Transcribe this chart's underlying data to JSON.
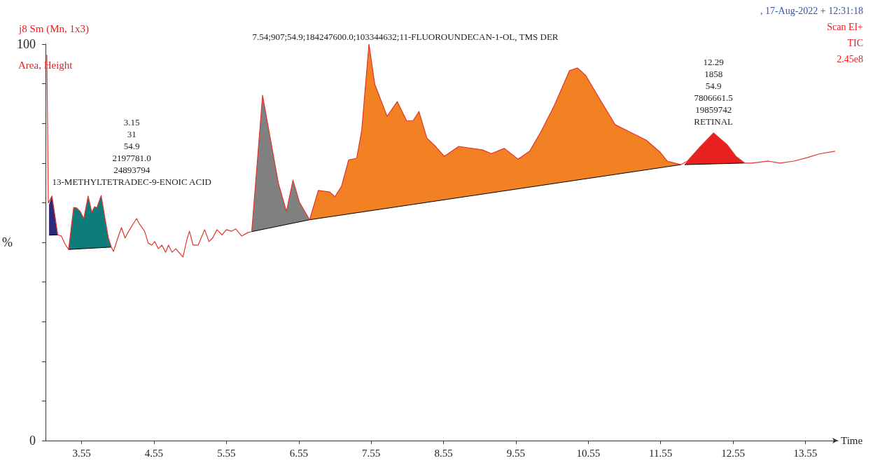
{
  "chart_data": {
    "type": "line",
    "title": "j8 Sm (Mn, 1x3)",
    "subtitle": "Area, Height",
    "xlabel": "Time",
    "ylabel": "%",
    "annotations": [
      ", 17-Aug-2022 + 12:31:18",
      "Scan EI+",
      "TIC",
      "2.45e8",
      {
        "text": "3.15\n31\n54.9\n2197781.0\n24893794\n13-METHYLTETRADEC-9-ENOIC ACID",
        "x": 3.14,
        "y": 61.7
      },
      {
        "text": "7.54;907;54.9;184247600.0;103344632;11-FLUOROUNDECAN-1-OL, TMS DER",
        "x": 7.52,
        "y": 100
      },
      {
        "text": "12.29\n1858\n54.9\n7806661.5\n19859742\nRETINAL",
        "x": 12.28,
        "y": 77.6
      }
    ],
    "xlim": [
      3.05,
      14.0
    ],
    "xticks": [
      3.55,
      4.55,
      5.55,
      6.55,
      7.55,
      8.55,
      9.55,
      10.55,
      11.55,
      12.55,
      13.55
    ],
    "ylim": [
      0,
      100
    ],
    "yticks": [
      0,
      {
        "value": 10,
        "label": null
      },
      {
        "value": 20,
        "label": null
      },
      {
        "value": 30,
        "label": null
      },
      {
        "value": 40,
        "label": null
      },
      {
        "value": 50,
        "label": null
      },
      {
        "value": 60,
        "label": null
      },
      {
        "value": 70,
        "label": null
      },
      {
        "value": 80,
        "label": null
      },
      {
        "value": 90,
        "label": null
      },
      100
    ],
    "series": [
      {
        "type": "area",
        "color": "#2b2a7a",
        "x": [
          3.1,
          3.1,
          3.14,
          3.17,
          3.22
        ],
        "values": [
          51.8,
          59.5,
          61.7,
          58.1,
          51.9
        ]
      },
      {
        "type": "area",
        "color": "#0e7c7b",
        "x": [
          3.37,
          3.44,
          3.48,
          3.53,
          3.58,
          3.64,
          3.69,
          3.73,
          3.76,
          3.82,
          3.87,
          3.92,
          3.96
        ],
        "values": [
          48.2,
          58.8,
          58.7,
          57.8,
          56.0,
          61.7,
          57.6,
          59.0,
          58.7,
          61.8,
          56.4,
          51.1,
          48.8
        ]
      },
      {
        "type": "area",
        "color": "#808080",
        "x": [
          5.9,
          6.05,
          6.17,
          6.27,
          6.38,
          6.47,
          6.56,
          6.7
        ],
        "values": [
          52.7,
          87.1,
          74.9,
          64.8,
          57.8,
          65.7,
          60.1,
          55.7
        ]
      },
      {
        "type": "area",
        "color": "#f28123",
        "x": [
          6.7,
          6.82,
          6.98,
          7.05,
          7.14,
          7.24,
          7.35,
          7.42,
          7.52,
          7.6,
          7.77,
          7.91,
          8.04,
          8.13,
          8.21,
          8.32,
          8.44,
          8.56,
          8.76,
          9.09,
          9.21,
          9.39,
          9.58,
          9.74,
          9.89,
          10.08,
          10.29,
          10.4,
          10.51,
          10.7,
          10.92,
          11.14,
          11.35,
          11.54,
          11.64,
          11.83
        ],
        "values": [
          55.7,
          63.1,
          62.7,
          61.5,
          64.1,
          70.8,
          71.2,
          78.3,
          100,
          89.9,
          81.8,
          85.5,
          80.7,
          80.7,
          83.0,
          76.3,
          74.2,
          71.7,
          74.2,
          73.3,
          72.4,
          73.7,
          71.0,
          73.0,
          77.7,
          84.5,
          93.3,
          94.0,
          92.2,
          86.4,
          79.7,
          77.7,
          75.8,
          72.8,
          70.5,
          69.6
        ]
      },
      {
        "type": "area",
        "color": "#e8201f",
        "x": [
          11.88,
          11.92,
          12.09,
          12.28,
          12.47,
          12.59,
          12.71
        ],
        "values": [
          69.6,
          70.5,
          74.0,
          77.6,
          74.6,
          71.7,
          70.0
        ]
      },
      {
        "color": "#e0352b",
        "x": [
          3.07,
          3.09,
          3.14,
          3.17,
          3.22,
          3.27,
          3.32,
          3.37,
          3.44,
          3.48,
          3.53,
          3.58,
          3.64,
          3.69,
          3.73,
          3.76,
          3.82,
          3.87,
          3.92,
          3.96,
          3.99,
          4.05,
          4.1,
          4.15,
          4.2,
          4.26,
          4.31,
          4.35,
          4.42,
          4.47,
          4.52,
          4.56,
          4.61,
          4.66,
          4.71,
          4.75,
          4.8,
          4.85,
          4.95,
          5.01,
          5.04,
          5.09,
          5.16,
          5.25,
          5.31,
          5.36,
          5.42,
          5.49,
          5.55,
          5.62,
          5.68,
          5.76,
          5.85,
          5.9,
          6.05,
          6.17,
          6.27,
          6.38,
          6.47,
          6.56,
          6.7,
          6.82,
          6.98,
          7.05,
          7.14,
          7.24,
          7.35,
          7.42,
          7.52,
          7.6,
          7.77,
          7.91,
          8.04,
          8.13,
          8.21,
          8.32,
          8.44,
          8.56,
          8.76,
          9.09,
          9.21,
          9.39,
          9.58,
          9.74,
          9.89,
          10.08,
          10.29,
          10.4,
          10.51,
          10.7,
          10.92,
          11.14,
          11.35,
          11.54,
          11.64,
          11.83,
          11.92,
          12.09,
          12.28,
          12.47,
          12.59,
          12.71,
          12.81,
          13.04,
          13.2,
          13.39,
          13.58,
          13.74,
          13.96
        ],
        "values": [
          97.3,
          59.9,
          61.7,
          58.1,
          51.9,
          51.6,
          49.6,
          48.2,
          58.8,
          58.7,
          57.8,
          56.0,
          61.7,
          57.6,
          59.0,
          58.7,
          61.8,
          56.4,
          51.1,
          48.8,
          47.7,
          51.1,
          53.7,
          51.1,
          52.8,
          54.6,
          56.0,
          54.6,
          52.8,
          49.8,
          49.3,
          50.2,
          48.4,
          49.3,
          47.5,
          49.3,
          47.5,
          48.4,
          46.3,
          51.1,
          52.8,
          49.3,
          49.3,
          53.2,
          50.2,
          51.1,
          53.2,
          51.9,
          53.2,
          52.8,
          53.4,
          51.6,
          52.5,
          52.7,
          87.1,
          74.9,
          64.8,
          57.8,
          65.7,
          60.1,
          55.7,
          63.1,
          62.7,
          61.5,
          64.1,
          70.8,
          71.2,
          78.3,
          100,
          89.9,
          81.8,
          85.5,
          80.7,
          80.7,
          83.0,
          76.3,
          74.2,
          71.7,
          74.2,
          73.3,
          72.4,
          73.7,
          71.0,
          73.0,
          77.7,
          84.5,
          93.3,
          94.0,
          92.2,
          86.4,
          79.7,
          77.7,
          75.8,
          72.8,
          70.5,
          69.6,
          70.5,
          74.0,
          77.6,
          74.6,
          71.7,
          70.0,
          70.0,
          70.5,
          70.0,
          70.5,
          71.4,
          72.3,
          73.0
        ]
      }
    ]
  }
}
